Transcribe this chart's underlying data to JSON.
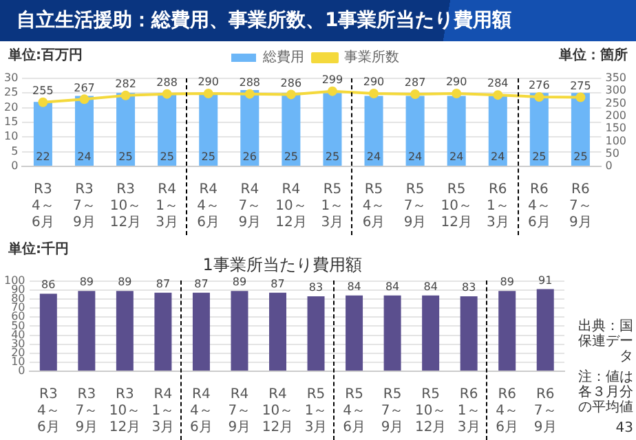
{
  "chart_data": [
    {
      "type": "bar",
      "title": "自立生活援助：総費用、事業所数、1事業所当たり費用額",
      "ylabel": "単位:百万円",
      "y2label": "単位：箇所",
      "categories": [
        "R3 4～6月",
        "R3 7～9月",
        "R3 10～12月",
        "R4 1～3月",
        "R4 4～6月",
        "R4 7～9月",
        "R4 10～12月",
        "R5 1～3月",
        "R5 4～6月",
        "R5 7～9月",
        "R5 10～12月",
        "R6 1～3月",
        "R6 4～6月",
        "R6 7～9月"
      ],
      "series": [
        {
          "name": "総費用",
          "type": "bar",
          "color": "#6cb6f7",
          "values": [
            22,
            24,
            25,
            25,
            25,
            26,
            25,
            25,
            24,
            24,
            24,
            24,
            25,
            25
          ]
        },
        {
          "name": "事業所数",
          "type": "line",
          "axis": "y2",
          "color": "#f4d93c",
          "values": [
            255,
            267,
            282,
            288,
            290,
            288,
            286,
            299,
            290,
            287,
            290,
            284,
            276,
            275
          ]
        }
      ],
      "ylim": [
        0,
        30
      ],
      "yticks": [
        0,
        5,
        10,
        15,
        20,
        25,
        30
      ],
      "y2lim": [
        0,
        350
      ],
      "y2ticks": [
        0,
        50,
        100,
        150,
        200,
        250,
        300,
        350
      ],
      "data_labels": true,
      "grid": "y",
      "legend": "top",
      "marker": "circle"
    },
    {
      "type": "bar",
      "title": "1事業所当たり費用額",
      "ylabel": "単位:千円",
      "categories": [
        "R3 4～6月",
        "R3 7～9月",
        "R3 10～12月",
        "R4 1～3月",
        "R4 4～6月",
        "R4 7～9月",
        "R4 10～12月",
        "R5 1～3月",
        "R5 4～6月",
        "R5 7～9月",
        "R5 10～12月",
        "R6 1～3月",
        "R6 4～6月",
        "R6 7～9月"
      ],
      "values": [
        86,
        89,
        89,
        87,
        87,
        89,
        87,
        83,
        84,
        84,
        84,
        83,
        89,
        91
      ],
      "color": "#5b4f8e",
      "ylim": [
        0,
        100
      ],
      "yticks": [
        0,
        10,
        20,
        30,
        40,
        50,
        60,
        70,
        80,
        90,
        100
      ],
      "data_labels": true,
      "grid": "y",
      "annotations": [
        "出典：国保連データ",
        "注：値は各３月分の平均値",
        "43"
      ]
    }
  ]
}
